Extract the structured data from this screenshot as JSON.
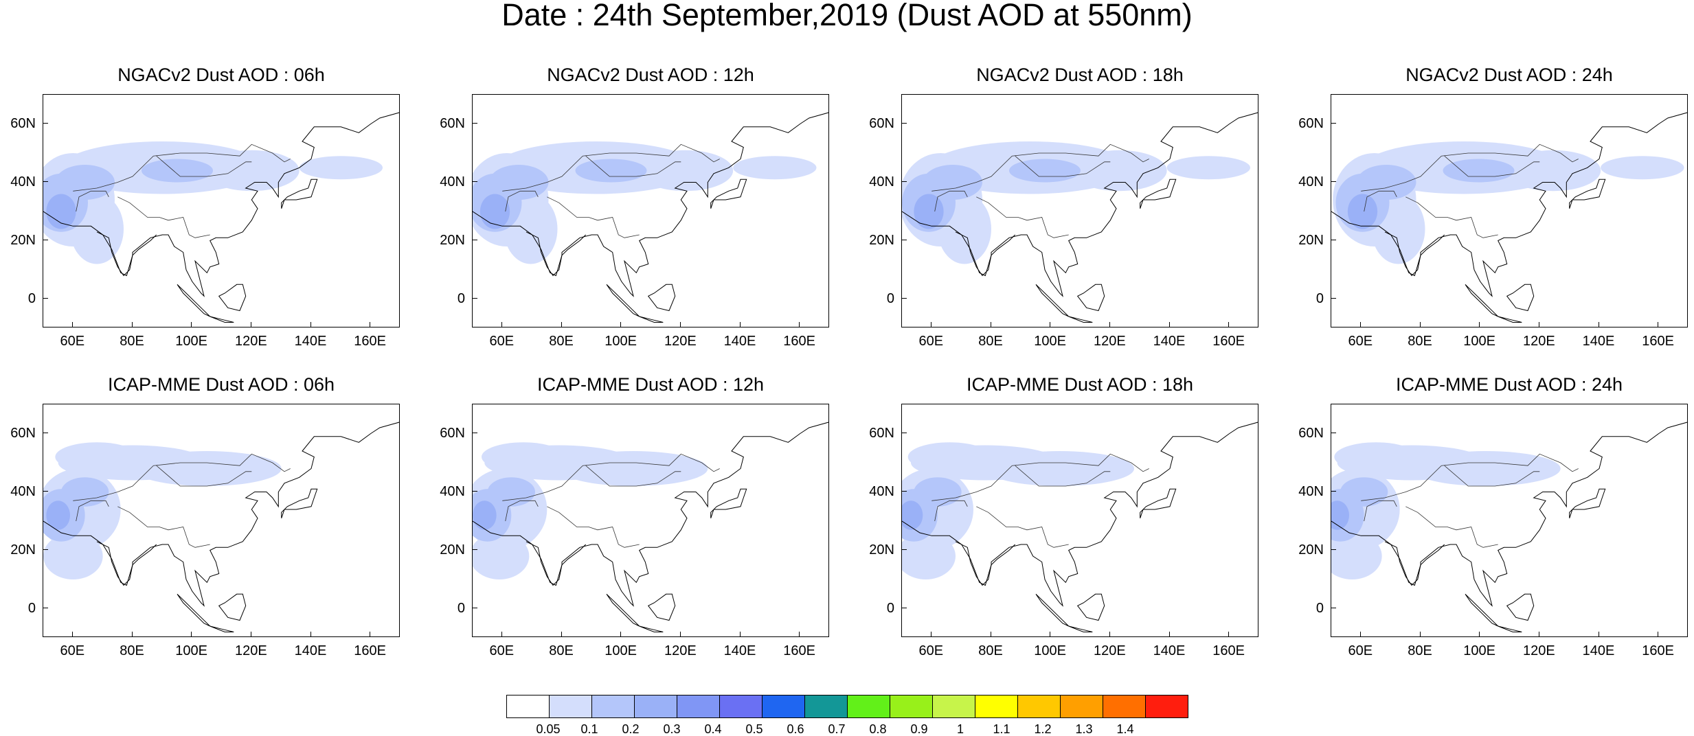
{
  "title": "Date : 24th September,2019 (Dust AOD at 550nm)",
  "panels": [
    {
      "title": "NGACv2 Dust AOD : 06h"
    },
    {
      "title": "NGACv2 Dust AOD : 12h"
    },
    {
      "title": "NGACv2 Dust AOD : 18h"
    },
    {
      "title": "NGACv2 Dust AOD : 24h"
    },
    {
      "title": "ICAP-MME Dust AOD : 06h"
    },
    {
      "title": "ICAP-MME Dust AOD : 12h"
    },
    {
      "title": "ICAP-MME Dust AOD : 18h"
    },
    {
      "title": "ICAP-MME Dust AOD : 24h"
    }
  ],
  "axis": {
    "lon_ticks": [
      "60E",
      "80E",
      "100E",
      "120E",
      "140E",
      "160E"
    ],
    "lat_ticks": [
      "60N",
      "40N",
      "20N",
      "0"
    ],
    "lon_range": [
      50,
      170
    ],
    "lat_range": [
      -10,
      70
    ]
  },
  "colorbar": {
    "labels": [
      "0.05",
      "0.1",
      "0.2",
      "0.3",
      "0.4",
      "0.5",
      "0.6",
      "0.7",
      "0.8",
      "0.9",
      "1",
      "1.1",
      "1.2",
      "1.3",
      "1.4"
    ],
    "colors": [
      "#ffffff",
      "#d4defc",
      "#b4c6fa",
      "#9ab1f7",
      "#8096f5",
      "#6a70f3",
      "#1f66f1",
      "#139797",
      "#62f019",
      "#98f01a",
      "#c7f44a",
      "#ffff00",
      "#ffc800",
      "#ff9f00",
      "#ff6f00",
      "#ff1e0e"
    ]
  }
}
